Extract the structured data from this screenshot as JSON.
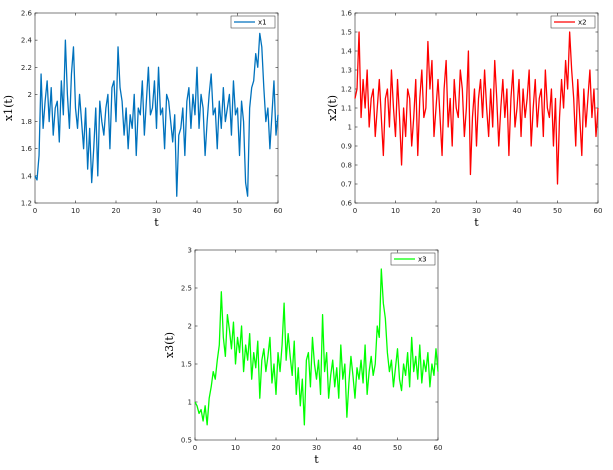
{
  "chart_data": [
    {
      "type": "line",
      "xlabel": "t",
      "ylabel": "x1(t)",
      "xlim": [
        0,
        60
      ],
      "ylim": [
        1.2,
        2.6
      ],
      "xticks": [
        "0",
        "10",
        "20",
        "30",
        "40",
        "50",
        "60"
      ],
      "yticks": [
        "1.2",
        "1.4",
        "1.6",
        "1.8",
        "2",
        "2.2",
        "2.4",
        "2.6"
      ],
      "legend": "top-right",
      "grid": false,
      "series": [
        {
          "name": "x1",
          "color": "#0072BD",
          "x": [
            0,
            0.5,
            1,
            1.5,
            2,
            2.5,
            3,
            3.5,
            4,
            4.5,
            5,
            5.5,
            6,
            6.5,
            7,
            7.5,
            8,
            8.5,
            9,
            9.5,
            10,
            10.5,
            11,
            11.5,
            12,
            12.5,
            13,
            13.5,
            14,
            14.5,
            15,
            15.5,
            16,
            16.5,
            17,
            17.5,
            18,
            18.5,
            19,
            19.5,
            20,
            20.5,
            21,
            21.5,
            22,
            22.5,
            23,
            23.5,
            24,
            24.5,
            25,
            25.5,
            26,
            26.5,
            27,
            27.5,
            28,
            28.5,
            29,
            29.5,
            30,
            30.5,
            31,
            31.5,
            32,
            32.5,
            33,
            33.5,
            34,
            34.5,
            35,
            35.5,
            36,
            36.5,
            37,
            37.5,
            38,
            38.5,
            39,
            39.5,
            40,
            40.5,
            41,
            41.5,
            42,
            42.5,
            43,
            43.5,
            44,
            44.5,
            45,
            45.5,
            46,
            46.5,
            47,
            47.5,
            48,
            48.5,
            49,
            49.5,
            50,
            50.5,
            51,
            51.5,
            52,
            52.5,
            53,
            53.5,
            54,
            54.5,
            55,
            55.5,
            56,
            56.5,
            57,
            57.5,
            58,
            58.5,
            59,
            59.5,
            60
          ],
          "y": [
            1.4,
            1.37,
            1.55,
            2.15,
            1.75,
            1.95,
            2.1,
            1.8,
            2.05,
            1.7,
            1.9,
            1.95,
            1.65,
            2.1,
            1.85,
            2.4,
            2.0,
            1.75,
            2.15,
            2.35,
            1.9,
            1.75,
            2.0,
            1.8,
            1.6,
            1.9,
            1.45,
            1.75,
            1.35,
            1.6,
            1.9,
            1.4,
            1.95,
            1.8,
            1.7,
            1.9,
            2.0,
            1.6,
            2.05,
            2.1,
            1.8,
            2.35,
            2.05,
            1.95,
            1.7,
            1.9,
            1.6,
            1.85,
            1.75,
            2.0,
            1.55,
            1.9,
            1.85,
            2.1,
            1.7,
            1.95,
            2.2,
            1.85,
            1.9,
            2.1,
            1.75,
            2.2,
            1.85,
            1.9,
            1.6,
            2.0,
            1.95,
            1.8,
            1.65,
            1.85,
            1.25,
            1.7,
            1.75,
            1.9,
            1.55,
            1.95,
            2.05,
            1.75,
            2.0,
            1.85,
            2.2,
            1.75,
            2.0,
            1.9,
            1.55,
            1.8,
            2.0,
            2.15,
            1.85,
            1.9,
            1.6,
            1.95,
            1.75,
            2.05,
            1.8,
            1.9,
            2.0,
            1.7,
            2.1,
            1.85,
            1.9,
            1.55,
            1.95,
            1.8,
            1.35,
            1.25,
            1.9,
            2.05,
            2.1,
            2.3,
            2.2,
            2.45,
            2.35,
            2.05,
            1.8,
            1.9,
            1.6,
            1.85,
            2.1,
            1.7,
            1.85
          ]
        }
      ]
    },
    {
      "type": "line",
      "xlabel": "t",
      "ylabel": "x2(t)",
      "xlim": [
        0,
        60
      ],
      "ylim": [
        0.6,
        1.6
      ],
      "xticks": [
        "0",
        "10",
        "20",
        "30",
        "40",
        "50",
        "60"
      ],
      "yticks": [
        "0.6",
        "0.7",
        "0.8",
        "0.9",
        "1",
        "1.1",
        "1.2",
        "1.3",
        "1.4",
        "1.5",
        "1.6"
      ],
      "legend": "top-right",
      "grid": false,
      "series": [
        {
          "name": "x2",
          "color": "#FF0000",
          "x": [
            0,
            0.5,
            1,
            1.5,
            2,
            2.5,
            3,
            3.5,
            4,
            4.5,
            5,
            5.5,
            6,
            6.5,
            7,
            7.5,
            8,
            8.5,
            9,
            9.5,
            10,
            10.5,
            11,
            11.5,
            12,
            12.5,
            13,
            13.5,
            14,
            14.5,
            15,
            15.5,
            16,
            16.5,
            17,
            17.5,
            18,
            18.5,
            19,
            19.5,
            20,
            20.5,
            21,
            21.5,
            22,
            22.5,
            23,
            23.5,
            24,
            24.5,
            25,
            25.5,
            26,
            26.5,
            27,
            27.5,
            28,
            28.5,
            29,
            29.5,
            30,
            30.5,
            31,
            31.5,
            32,
            32.5,
            33,
            33.5,
            34,
            34.5,
            35,
            35.5,
            36,
            36.5,
            37,
            37.5,
            38,
            38.5,
            39,
            39.5,
            40,
            40.5,
            41,
            41.5,
            42,
            42.5,
            43,
            43.5,
            44,
            44.5,
            45,
            45.5,
            46,
            46.5,
            47,
            47.5,
            48,
            48.5,
            49,
            49.5,
            50,
            50.5,
            51,
            51.5,
            52,
            52.5,
            53,
            53.5,
            54,
            54.5,
            55,
            55.5,
            56,
            56.5,
            57,
            57.5,
            58,
            58.5,
            59,
            59.5,
            60
          ],
          "y": [
            1.15,
            1.2,
            1.5,
            1.05,
            1.25,
            1.1,
            1.3,
            1.0,
            1.15,
            1.2,
            0.95,
            1.1,
            1.25,
            1.05,
            0.85,
            1.15,
            1.2,
            1.0,
            1.3,
            1.1,
            0.95,
            1.25,
            1.05,
            0.8,
            1.1,
            0.95,
            1.2,
            1.15,
            0.9,
            1.05,
            1.25,
            0.85,
            1.15,
            1.3,
            1.05,
            1.1,
            1.45,
            1.2,
            1.35,
            0.95,
            1.1,
            1.25,
            1.05,
            0.85,
            1.2,
            1.35,
            1.0,
            1.15,
            0.9,
            1.25,
            1.1,
            1.05,
            1.3,
            1.2,
            0.95,
            1.1,
            1.4,
            0.75,
            1.05,
            1.2,
            0.9,
            1.15,
            1.25,
            1.05,
            1.3,
            1.1,
            0.95,
            1.2,
            1.0,
            1.35,
            1.15,
            0.9,
            1.1,
            1.25,
            1.05,
            1.2,
            0.85,
            1.15,
            1.3,
            1.0,
            1.1,
            1.25,
            0.95,
            1.2,
            1.05,
            1.15,
            1.3,
            0.9,
            1.1,
            1.25,
            1.0,
            1.15,
            1.2,
            0.95,
            1.3,
            1.1,
            1.05,
            1.2,
            0.9,
            1.15,
            0.7,
            1.05,
            1.25,
            1.1,
            1.35,
            1.2,
            1.5,
            1.3,
            1.15,
            0.9,
            1.25,
            1.05,
            0.85,
            1.2,
            1.0,
            1.15,
            1.3,
            1.05,
            1.2,
            0.95,
            1.1
          ]
        }
      ]
    },
    {
      "type": "line",
      "xlabel": "t",
      "ylabel": "x3(t)",
      "xlim": [
        0,
        60
      ],
      "ylim": [
        0.5,
        3
      ],
      "xticks": [
        "0",
        "10",
        "20",
        "30",
        "40",
        "50",
        "60"
      ],
      "yticks": [
        "0.5",
        "1",
        "1.5",
        "2",
        "2.5",
        "3"
      ],
      "legend": "top-right",
      "grid": false,
      "series": [
        {
          "name": "x3",
          "color": "#00FF00",
          "x": [
            0,
            0.5,
            1,
            1.5,
            2,
            2.5,
            3,
            3.5,
            4,
            4.5,
            5,
            5.5,
            6,
            6.5,
            7,
            7.5,
            8,
            8.5,
            9,
            9.5,
            10,
            10.5,
            11,
            11.5,
            12,
            12.5,
            13,
            13.5,
            14,
            14.5,
            15,
            15.5,
            16,
            16.5,
            17,
            17.5,
            18,
            18.5,
            19,
            19.5,
            20,
            20.5,
            21,
            21.5,
            22,
            22.5,
            23,
            23.5,
            24,
            24.5,
            25,
            25.5,
            26,
            26.5,
            27,
            27.5,
            28,
            28.5,
            29,
            29.5,
            30,
            30.5,
            31,
            31.5,
            32,
            32.5,
            33,
            33.5,
            34,
            34.5,
            35,
            35.5,
            36,
            36.5,
            37,
            37.5,
            38,
            38.5,
            39,
            39.5,
            40,
            40.5,
            41,
            41.5,
            42,
            42.5,
            43,
            43.5,
            44,
            44.5,
            45,
            45.5,
            46,
            46.5,
            47,
            47.5,
            48,
            48.5,
            49,
            49.5,
            50,
            50.5,
            51,
            51.5,
            52,
            52.5,
            53,
            53.5,
            54,
            54.5,
            55,
            55.5,
            56,
            56.5,
            57,
            57.5,
            58,
            58.5,
            59,
            59.5,
            60
          ],
          "y": [
            1.0,
            0.95,
            0.85,
            0.9,
            0.75,
            0.95,
            0.7,
            1.05,
            1.2,
            1.4,
            1.3,
            1.55,
            1.75,
            2.45,
            1.85,
            1.6,
            2.15,
            1.95,
            1.7,
            2.05,
            1.5,
            1.85,
            1.65,
            2.0,
            1.4,
            1.75,
            1.55,
            1.9,
            1.3,
            1.65,
            1.45,
            1.8,
            1.05,
            1.55,
            1.7,
            1.4,
            1.6,
            1.85,
            1.25,
            1.5,
            1.1,
            1.65,
            1.4,
            1.75,
            2.3,
            1.55,
            1.9,
            1.6,
            1.35,
            1.8,
            1.1,
            1.45,
            0.95,
            1.3,
            0.7,
            1.55,
            1.65,
            1.2,
            1.85,
            1.5,
            1.3,
            1.55,
            1.1,
            2.15,
            1.4,
            1.65,
            1.05,
            1.35,
            1.55,
            1.2,
            1.45,
            1.05,
            1.75,
            1.3,
            1.5,
            0.8,
            1.25,
            1.6,
            1.35,
            1.05,
            1.45,
            1.3,
            1.55,
            1.25,
            1.75,
            1.1,
            1.4,
            1.6,
            1.35,
            1.5,
            2.0,
            1.85,
            2.75,
            2.3,
            2.1,
            1.65,
            1.4,
            1.55,
            1.2,
            1.45,
            1.7,
            1.3,
            1.15,
            1.5,
            1.35,
            1.65,
            1.2,
            1.85,
            1.4,
            1.6,
            1.3,
            1.75,
            1.25,
            1.55,
            1.4,
            1.65,
            1.2,
            1.5,
            1.35,
            1.7,
            1.4
          ]
        }
      ]
    }
  ]
}
